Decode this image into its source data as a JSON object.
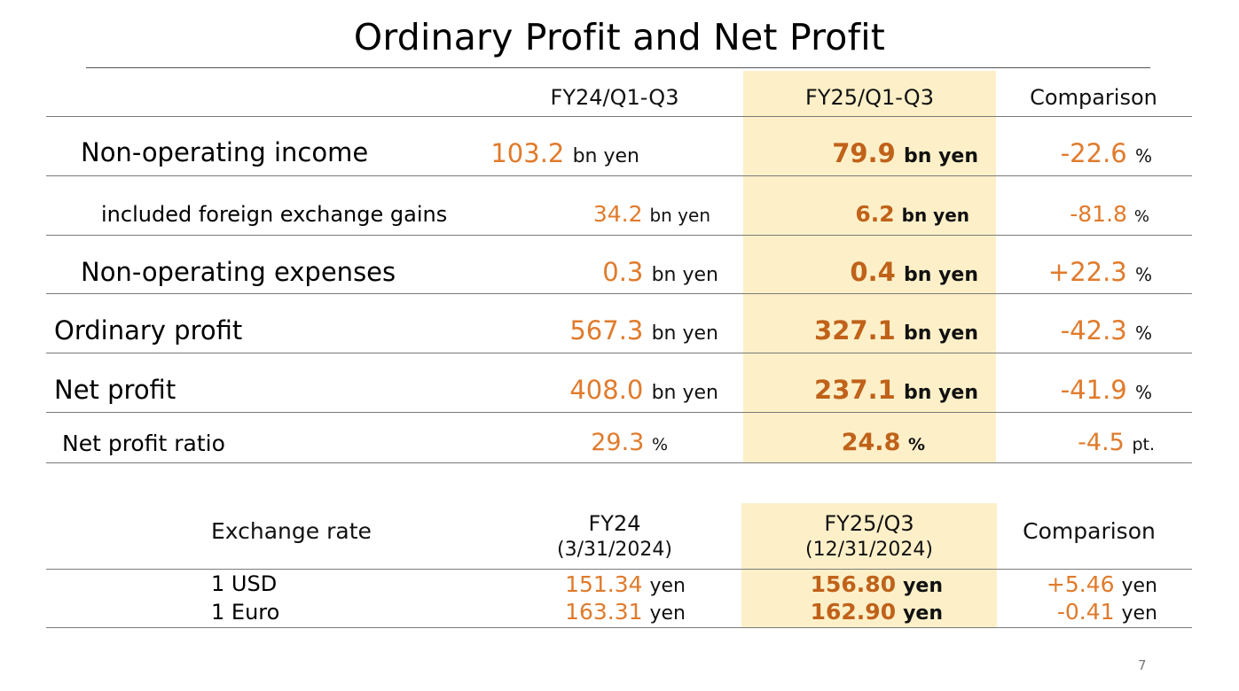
{
  "title": "Ordinary Profit and Net Profit",
  "page_number": "7",
  "profit_table": {
    "columns": [
      "FY24/Q1-Q3",
      "FY25/Q1-Q3",
      "Comparison"
    ],
    "rows": [
      {
        "label": "Non-operating income",
        "fy24": "103.2",
        "fy24_unit": "bn yen",
        "fy25": "79.9",
        "fy25_unit": "bn yen",
        "cmp": "-22.6",
        "cmp_unit": "%"
      },
      {
        "label": "included foreign exchange gains",
        "fy24": "34.2",
        "fy24_unit": "bn yen",
        "fy25": "6.2",
        "fy25_unit": "bn yen",
        "cmp": "-81.8",
        "cmp_unit": "%"
      },
      {
        "label": "Non-operating expenses",
        "fy24": "0.3",
        "fy24_unit": "bn yen",
        "fy25": "0.4",
        "fy25_unit": "bn yen",
        "cmp": "+22.3",
        "cmp_unit": "%"
      },
      {
        "label": "Ordinary profit",
        "fy24": "567.3",
        "fy24_unit": "bn yen",
        "fy25": "327.1",
        "fy25_unit": "bn yen",
        "cmp": "-42.3",
        "cmp_unit": "%"
      },
      {
        "label": "Net profit",
        "fy24": "408.0",
        "fy24_unit": "bn yen",
        "fy25": "237.1",
        "fy25_unit": "bn yen",
        "cmp": "-41.9",
        "cmp_unit": "%"
      },
      {
        "label": "Net profit ratio",
        "fy24": "29.3",
        "fy24_unit": "%",
        "fy25": "24.8",
        "fy25_unit": "%",
        "cmp": "-4.5",
        "cmp_unit": "pt."
      }
    ]
  },
  "fx_table": {
    "label_header": "Exchange rate",
    "col1": {
      "line1": "FY24",
      "line2": "(3/31/2024)"
    },
    "col2": {
      "line1": "FY25/Q3",
      "line2": "(12/31/2024)"
    },
    "col3": "Comparison",
    "rows": [
      {
        "label": "1 USD",
        "fy24": "151.34",
        "fy25": "156.80",
        "cmp": "+5.46",
        "unit": "yen"
      },
      {
        "label": "1 Euro",
        "fy24": "163.31",
        "fy25": "162.90",
        "cmp": "-0.41",
        "unit": "yen"
      }
    ]
  },
  "colors": {
    "highlight": "#fdf0c8",
    "value_orange": "#e07b2c",
    "value_bold_orange": "#c0621a"
  }
}
